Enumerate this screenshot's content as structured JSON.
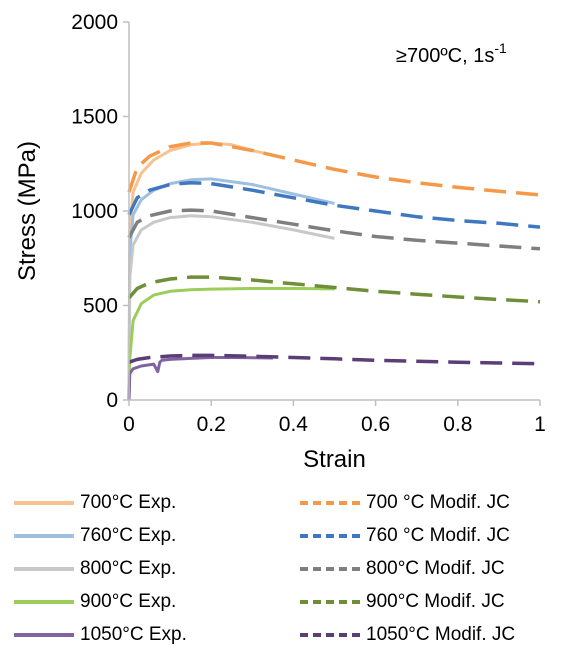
{
  "chart_data": {
    "type": "line",
    "title": "",
    "annotation": "≥700ºC,  1s-1",
    "xlabel": "Strain",
    "ylabel": "Stress (MPa)",
    "xlim": [
      0,
      1
    ],
    "ylim": [
      0,
      2000
    ],
    "xticks": [
      "0",
      "0.2",
      "0.4",
      "0.6",
      "0.8",
      "1"
    ],
    "yticks": [
      "0",
      "500",
      "1000",
      "1500",
      "2000"
    ],
    "grid": false,
    "legend_position": "bottom",
    "series": [
      {
        "name": "700°C Exp.",
        "style": "solid",
        "color": "#f9c18f",
        "x": [
          0,
          0.002,
          0.01,
          0.03,
          0.06,
          0.1,
          0.15,
          0.2,
          0.25,
          0.3,
          0.35
        ],
        "y": [
          0,
          900,
          1100,
          1200,
          1270,
          1320,
          1350,
          1360,
          1350,
          1320,
          1295
        ]
      },
      {
        "name": "760°C Exp.",
        "style": "solid",
        "color": "#9fbfe0",
        "x": [
          0,
          0.002,
          0.01,
          0.03,
          0.06,
          0.1,
          0.15,
          0.2,
          0.3,
          0.4,
          0.5
        ],
        "y": [
          0,
          780,
          980,
          1060,
          1110,
          1145,
          1165,
          1170,
          1140,
          1090,
          1040
        ]
      },
      {
        "name": "800°C Exp.",
        "style": "solid",
        "color": "#c8c8c8",
        "x": [
          0,
          0.002,
          0.01,
          0.03,
          0.06,
          0.1,
          0.15,
          0.2,
          0.3,
          0.4,
          0.5
        ],
        "y": [
          0,
          650,
          820,
          900,
          940,
          965,
          975,
          970,
          940,
          900,
          855
        ]
      },
      {
        "name": "900°C Exp.",
        "style": "solid",
        "color": "#9ccc5a",
        "x": [
          0,
          0.002,
          0.01,
          0.03,
          0.06,
          0.1,
          0.15,
          0.2,
          0.3,
          0.4,
          0.5
        ],
        "y": [
          0,
          220,
          420,
          510,
          555,
          575,
          583,
          587,
          590,
          590,
          588
        ]
      },
      {
        "name": "1050°C Exp.",
        "style": "solid",
        "color": "#8064a2",
        "x": [
          0,
          0.002,
          0.01,
          0.03,
          0.06,
          0.07,
          0.075,
          0.08,
          0.1,
          0.15,
          0.2,
          0.25,
          0.35
        ],
        "y": [
          0,
          140,
          165,
          180,
          190,
          150,
          200,
          210,
          215,
          220,
          225,
          225,
          222
        ]
      },
      {
        "name": "700 °C  Modif. JC",
        "style": "dash",
        "color": "#f4994a",
        "x": [
          0,
          0.02,
          0.05,
          0.1,
          0.15,
          0.2,
          0.3,
          0.4,
          0.5,
          0.6,
          0.7,
          0.8,
          0.9,
          1.0
        ],
        "y": [
          1100,
          1230,
          1290,
          1340,
          1360,
          1360,
          1320,
          1270,
          1220,
          1180,
          1150,
          1125,
          1105,
          1085
        ]
      },
      {
        "name": "760 °C  Modif. JC",
        "style": "dash",
        "color": "#3f78c0",
        "x": [
          0,
          0.02,
          0.05,
          0.1,
          0.15,
          0.2,
          0.3,
          0.4,
          0.5,
          0.6,
          0.7,
          0.8,
          0.9,
          1.0
        ],
        "y": [
          980,
          1070,
          1110,
          1140,
          1150,
          1145,
          1110,
          1070,
          1030,
          1000,
          970,
          950,
          935,
          915
        ]
      },
      {
        "name": "800°C   Modif. JC",
        "style": "dash",
        "color": "#7f7f7f",
        "x": [
          0,
          0.02,
          0.05,
          0.1,
          0.15,
          0.2,
          0.3,
          0.4,
          0.5,
          0.6,
          0.7,
          0.8,
          0.9,
          1.0
        ],
        "y": [
          860,
          940,
          975,
          1000,
          1005,
          1000,
          965,
          930,
          895,
          865,
          845,
          830,
          815,
          800
        ]
      },
      {
        "name": "900°C  Modif. JC",
        "style": "dash",
        "color": "#6e8e38",
        "x": [
          0,
          0.02,
          0.05,
          0.1,
          0.15,
          0.2,
          0.3,
          0.4,
          0.5,
          0.6,
          0.7,
          0.8,
          0.9,
          1.0
        ],
        "y": [
          540,
          590,
          620,
          640,
          650,
          650,
          635,
          615,
          595,
          575,
          560,
          545,
          532,
          520
        ]
      },
      {
        "name": "1050°C  Modif. JC",
        "style": "dash",
        "color": "#5a3e75",
        "x": [
          0,
          0.02,
          0.05,
          0.1,
          0.15,
          0.2,
          0.3,
          0.4,
          0.5,
          0.6,
          0.7,
          0.8,
          0.9,
          1.0
        ],
        "y": [
          200,
          215,
          225,
          233,
          236,
          236,
          232,
          225,
          218,
          210,
          205,
          200,
          196,
          192
        ]
      }
    ]
  }
}
